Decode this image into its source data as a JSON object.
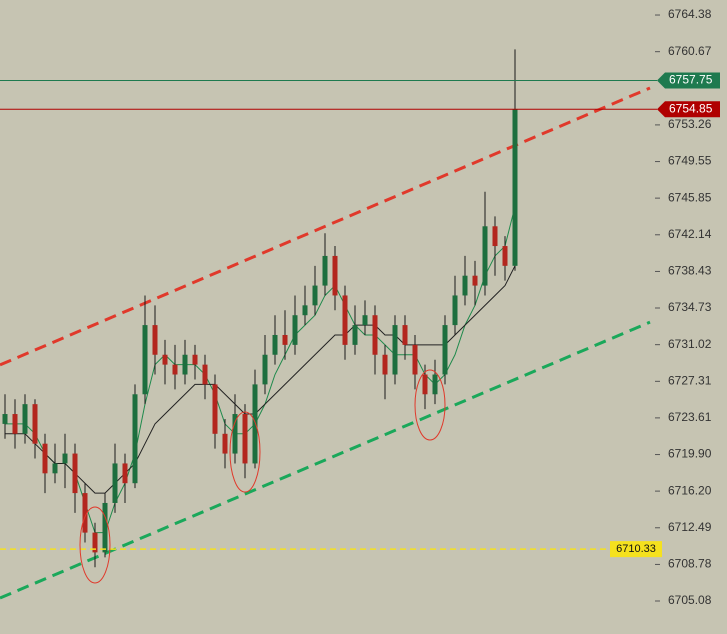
{
  "chart_data": {
    "type": "candlestick",
    "up_color": "#1d6e3e",
    "down_color": "#b3261e",
    "wick_color": "#1a1a1a",
    "open": [
      6723,
      6724,
      6722,
      6725,
      6721,
      6718,
      6719,
      6720,
      6716,
      6712,
      6710,
      6715,
      6719,
      6717,
      6726,
      6733,
      6730,
      6729,
      6728,
      6730,
      6729,
      6727,
      6722,
      6720,
      6724,
      6719,
      6727,
      6730,
      6732,
      6731,
      6734,
      6735,
      6737,
      6740,
      6736,
      6731,
      6733,
      6734,
      6730,
      6728,
      6733,
      6731,
      6728,
      6726,
      6728,
      6733,
      6736,
      6738,
      6737,
      6743,
      6741,
      6739
    ],
    "high": [
      6726,
      6725.5,
      6726,
      6725.5,
      6722,
      6721,
      6722,
      6721,
      6717,
      6713,
      6716,
      6721,
      6720,
      6727,
      6736,
      6735,
      6731.5,
      6731,
      6731.5,
      6731,
      6730,
      6728,
      6723.5,
      6726,
      6725,
      6728.5,
      6732,
      6734,
      6734.5,
      6736,
      6737,
      6739,
      6742.3,
      6741,
      6737,
      6735,
      6735.5,
      6735,
      6731,
      6734,
      6734,
      6732,
      6729,
      6729.5,
      6734,
      6738,
      6740,
      6739.5,
      6746.5,
      6744,
      6742,
      6760.9
    ],
    "low": [
      6721.5,
      6720.5,
      6721,
      6719.5,
      6716,
      6717,
      6716.5,
      6714,
      6711,
      6708.5,
      6709.5,
      6714,
      6715,
      6716.5,
      6725,
      6728,
      6727,
      6726.5,
      6727,
      6727.5,
      6725.5,
      6720.5,
      6718.5,
      6719,
      6717.5,
      6718.5,
      6726,
      6729,
      6729.5,
      6730,
      6733,
      6734,
      6736,
      6734.5,
      6729.5,
      6730,
      6732,
      6728,
      6725.5,
      6727,
      6729.5,
      6726.5,
      6724.5,
      6725,
      6727,
      6732,
      6735,
      6735,
      6736,
      6738,
      6737.5,
      6738.5
    ],
    "close": [
      6724,
      6722,
      6725,
      6721,
      6718,
      6719,
      6720,
      6716,
      6712,
      6710,
      6715,
      6719,
      6717,
      6726,
      6733,
      6730,
      6729,
      6728,
      6730,
      6729,
      6727,
      6722,
      6720,
      6724,
      6719,
      6727,
      6730,
      6732,
      6731,
      6734,
      6735,
      6737,
      6740,
      6736,
      6731,
      6733,
      6734,
      6730,
      6728,
      6733,
      6731,
      6728,
      6726,
      6728,
      6733,
      6736,
      6738,
      6737,
      6743,
      6741,
      6739,
      6754.85
    ],
    "series": [
      {
        "color": "#1f8a4c",
        "values": [
          6723,
          6723,
          6723,
          6722,
          6720,
          6719,
          6719,
          6718,
          6715,
          6712,
          6712,
          6715,
          6717,
          6720,
          6725,
          6729,
          6730,
          6729,
          6729,
          6729,
          6728,
          6726,
          6723,
          6722,
          6722,
          6723,
          6725,
          6728,
          6730,
          6732,
          6733,
          6734,
          6736,
          6737,
          6735,
          6733,
          6732,
          6732,
          6731,
          6730,
          6730,
          6730,
          6728,
          6727,
          6728,
          6730,
          6733,
          6735,
          6738,
          6740,
          6741,
          6745
        ]
      },
      {
        "color": "#222222",
        "values": [
          6722,
          6722,
          6722,
          6721,
          6720,
          6719,
          6719,
          6718,
          6717,
          6716,
          6716,
          6717,
          6718,
          6719,
          6721,
          6723,
          6724,
          6725,
          6726,
          6727,
          6727,
          6727,
          6726,
          6725,
          6724,
          6724,
          6725,
          6726,
          6727,
          6728,
          6729,
          6730,
          6731,
          6732,
          6732,
          6733,
          6733,
          6733,
          6732,
          6732,
          6731,
          6731,
          6731,
          6731,
          6731,
          6732,
          6733,
          6734,
          6735,
          6736,
          6737,
          6739
        ]
      }
    ],
    "trendlines": [
      {
        "color": "#e0392b",
        "x": [
          -0.5,
          64.5
        ],
        "y": [
          6728.97,
          6757.0
        ]
      },
      {
        "color": "#1aa85a",
        "x": [
          -0.5,
          64.5
        ],
        "y": [
          6705.38,
          6733.3
        ]
      }
    ],
    "price_lines": [
      {
        "value": 6757.75,
        "color": "#1e7a4f",
        "text_color": "#ffffff"
      },
      {
        "value": 6754.85,
        "color": "#b00000",
        "text_color": "#ffffff"
      },
      {
        "value": 6710.33,
        "color": "#f5e11e",
        "text_color": "#111111",
        "dashed": true
      }
    ],
    "xlim": [
      -0.5,
      65
    ],
    "ylim": [
      6701.74,
      6765.9
    ],
    "yticks": [
      6764.38,
      6760.67,
      6753.26,
      6749.55,
      6745.85,
      6742.14,
      6738.43,
      6734.73,
      6731.02,
      6727.31,
      6723.61,
      {
        "value": 6719.9,
        "label": "6719.90"
      },
      {
        "value": 6716.2,
        "label": "6716.20"
      },
      6712.49,
      6708.78,
      6705.08
    ]
  }
}
